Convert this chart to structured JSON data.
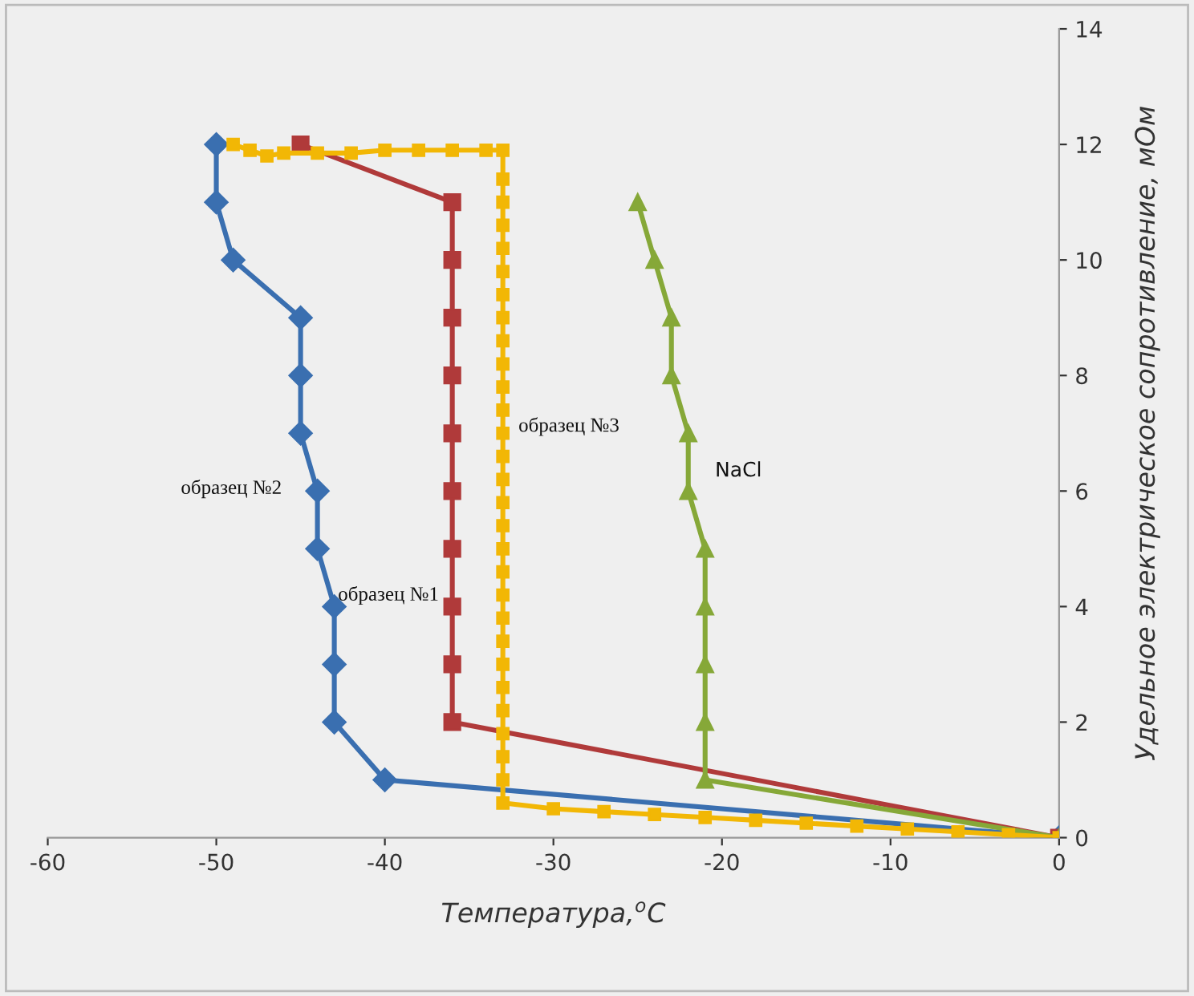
{
  "chart_data": {
    "type": "line",
    "xlabel": "Температура,$^{o}$С",
    "ylabel": "Удельное электрическое сопротивление, мОм",
    "xlim": [
      -60,
      0
    ],
    "xticks": [
      -60,
      -50,
      -40,
      -30,
      -20,
      -10,
      0
    ],
    "ylim": [
      0,
      14
    ],
    "yticks": [
      0,
      2,
      4,
      6,
      8,
      10,
      12,
      14
    ],
    "grid": false,
    "legend": false,
    "series": [
      {
        "name": "образец №2",
        "color": "#3a6fb0",
        "marker": "diamond",
        "x": [
          0,
          -40,
          -43,
          -43,
          -43,
          -44,
          -44,
          -45,
          -45,
          -45,
          -49,
          -50,
          -50
        ],
        "values": [
          0,
          1,
          2,
          3,
          4,
          5,
          6,
          7,
          8,
          9,
          10,
          11,
          12
        ]
      },
      {
        "name": "образец №1",
        "color": "#b03a3a",
        "marker": "square",
        "x": [
          0,
          -36,
          -36,
          -36,
          -36,
          -36,
          -36,
          -36,
          -36,
          -36,
          -36,
          -45
        ],
        "values": [
          0,
          2,
          3,
          4,
          5,
          6,
          7,
          8,
          9,
          10,
          11,
          12
        ]
      },
      {
        "name": "образец №3",
        "color": "#f2b705",
        "marker": "square",
        "x": [
          0,
          -3,
          -6,
          -9,
          -12,
          -15,
          -18,
          -21,
          -24,
          -27,
          -30,
          -33,
          -33,
          -33,
          -33,
          -33,
          -33,
          -33,
          -33,
          -33,
          -33,
          -33,
          -33,
          -33,
          -33,
          -33,
          -33,
          -33,
          -33,
          -33,
          -33,
          -33,
          -33,
          -33,
          -33,
          -33,
          -33,
          -33,
          -33,
          -33,
          -34,
          -36,
          -38,
          -40,
          -42,
          -44,
          -46,
          -47,
          -48,
          -49
        ],
        "values": [
          0,
          0.05,
          0.1,
          0.15,
          0.2,
          0.25,
          0.3,
          0.35,
          0.4,
          0.45,
          0.5,
          0.6,
          1.0,
          1.4,
          1.8,
          2.2,
          2.6,
          3.0,
          3.4,
          3.8,
          4.2,
          4.6,
          5.0,
          5.4,
          5.8,
          6.2,
          6.6,
          7.0,
          7.4,
          7.8,
          8.2,
          8.6,
          9.0,
          9.4,
          9.8,
          10.2,
          10.6,
          11.0,
          11.4,
          11.9,
          11.9,
          11.9,
          11.9,
          11.9,
          11.85,
          11.85,
          11.85,
          11.8,
          11.9,
          12
        ]
      },
      {
        "name": "NaCl",
        "color": "#86a838",
        "marker": "triangle",
        "x": [
          0,
          -21,
          -21,
          -21,
          -21,
          -21,
          -22,
          -22,
          -23,
          -23,
          -24,
          -25
        ],
        "values": [
          0,
          1,
          2,
          3,
          4,
          5,
          6,
          7,
          8,
          9,
          10,
          11
        ]
      }
    ]
  }
}
